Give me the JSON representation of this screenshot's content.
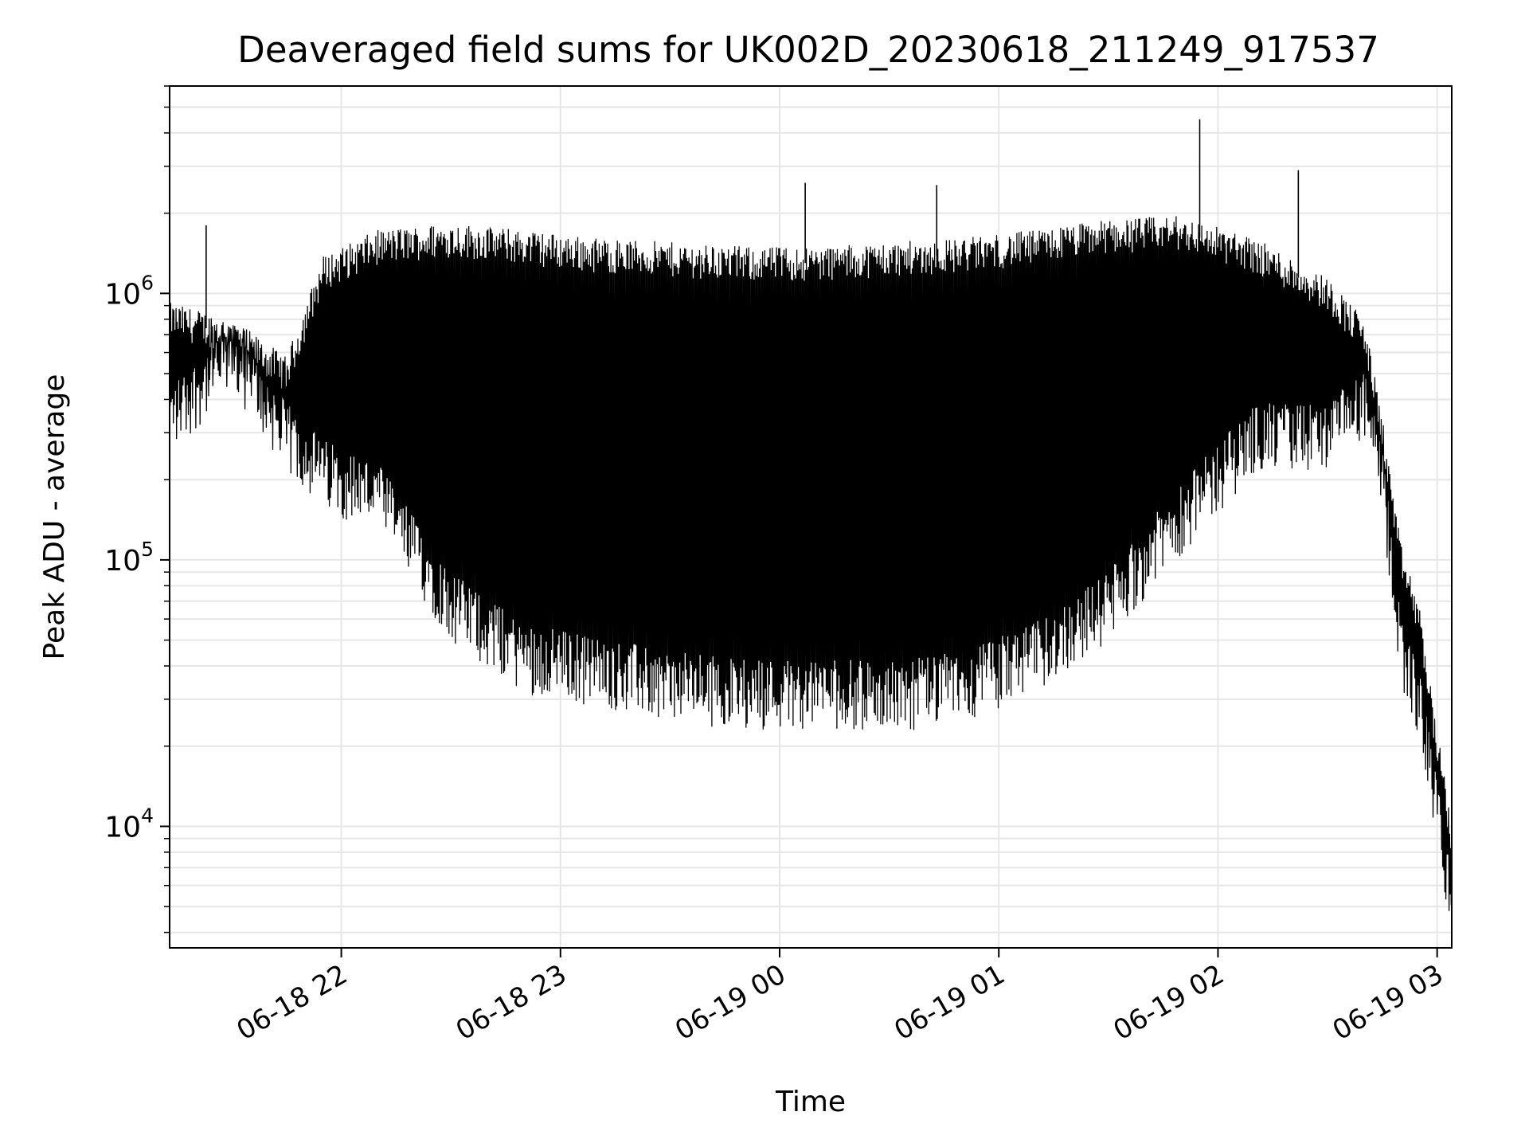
{
  "chart_data": {
    "type": "line",
    "title": "Deaveraged field sums for UK002D_20230618_211249_917537",
    "xlabel": "Time",
    "ylabel": "Peak ADU - average",
    "yscale": "log",
    "ylim": [
      3500,
      6000000
    ],
    "xlim": [
      "2023-06-18 21:13",
      "2023-06-19 03:04"
    ],
    "grid": true,
    "line_color": "#000000",
    "grid_color": "#e6e6e6",
    "xticks": [
      {
        "t": "2023-06-18 22:00",
        "label": "06-18 22"
      },
      {
        "t": "2023-06-18 23:00",
        "label": "06-18 23"
      },
      {
        "t": "2023-06-19 00:00",
        "label": "06-19 00"
      },
      {
        "t": "2023-06-19 01:00",
        "label": "06-19 01"
      },
      {
        "t": "2023-06-19 02:00",
        "label": "06-19 02"
      },
      {
        "t": "2023-06-19 03:00",
        "label": "06-19 03"
      }
    ],
    "yticks": [
      {
        "value": 10000,
        "base": "10",
        "exp": "4"
      },
      {
        "value": 100000,
        "base": "10",
        "exp": "5"
      },
      {
        "value": 1000000,
        "base": "10",
        "exp": "6"
      }
    ],
    "series": [
      {
        "x": [
          "2023-06-18 21:13",
          "2023-06-18 21:30",
          "2023-06-18 21:45",
          "2023-06-18 21:55",
          "2023-06-18 22:10",
          "2023-06-18 22:30",
          "2023-06-18 22:50",
          "2023-06-18 23:10",
          "2023-06-18 23:30",
          "2023-06-18 23:50",
          "2023-06-19 00:10",
          "2023-06-19 00:30",
          "2023-06-19 00:50",
          "2023-06-19 01:10",
          "2023-06-19 01:30",
          "2023-06-19 01:50",
          "2023-06-19 02:10",
          "2023-06-19 02:30",
          "2023-06-19 02:40",
          "2023-06-19 02:45",
          "2023-06-19 02:50",
          "2023-06-19 02:55",
          "2023-06-19 03:00",
          "2023-06-19 03:04"
        ],
        "low": [
          350000,
          600000,
          300000,
          220000,
          180000,
          70000,
          45000,
          40000,
          35000,
          33000,
          33000,
          32000,
          35000,
          45000,
          70000,
          150000,
          300000,
          300000,
          400000,
          200000,
          50000,
          30000,
          12000,
          5000
        ],
        "high": [
          800000,
          700000,
          500000,
          1200000,
          1500000,
          1600000,
          1500000,
          1400000,
          1350000,
          1300000,
          1300000,
          1350000,
          1400000,
          1500000,
          1650000,
          1700000,
          1400000,
          1000000,
          700000,
          300000,
          100000,
          60000,
          20000,
          9000
        ],
        "spikes": [
          {
            "t": "2023-06-18 21:23",
            "value": 1800000
          },
          {
            "t": "2023-06-19 00:07",
            "value": 2600000
          },
          {
            "t": "2023-06-19 00:43",
            "value": 2550000
          },
          {
            "t": "2023-06-19 01:55",
            "value": 4500000
          },
          {
            "t": "2023-06-19 02:22",
            "value": 2900000
          }
        ]
      }
    ]
  }
}
